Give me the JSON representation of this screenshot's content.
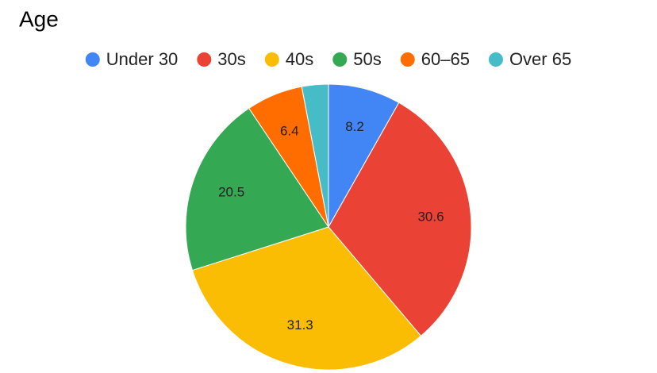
{
  "chart_data": {
    "type": "pie",
    "title": "Age",
    "categories": [
      "Under 30",
      "30s",
      "40s",
      "50s",
      "60–65",
      "Over 65"
    ],
    "values": [
      8.2,
      30.6,
      31.3,
      20.5,
      6.4,
      3.0
    ],
    "value_labels": [
      "8.2",
      "30.6",
      "31.3",
      "20.5",
      "6.4",
      null
    ],
    "colors": [
      "#4285f4",
      "#ea4335",
      "#fbbc04",
      "#34a853",
      "#ff6d01",
      "#46bdc6"
    ],
    "legend": "top"
  }
}
